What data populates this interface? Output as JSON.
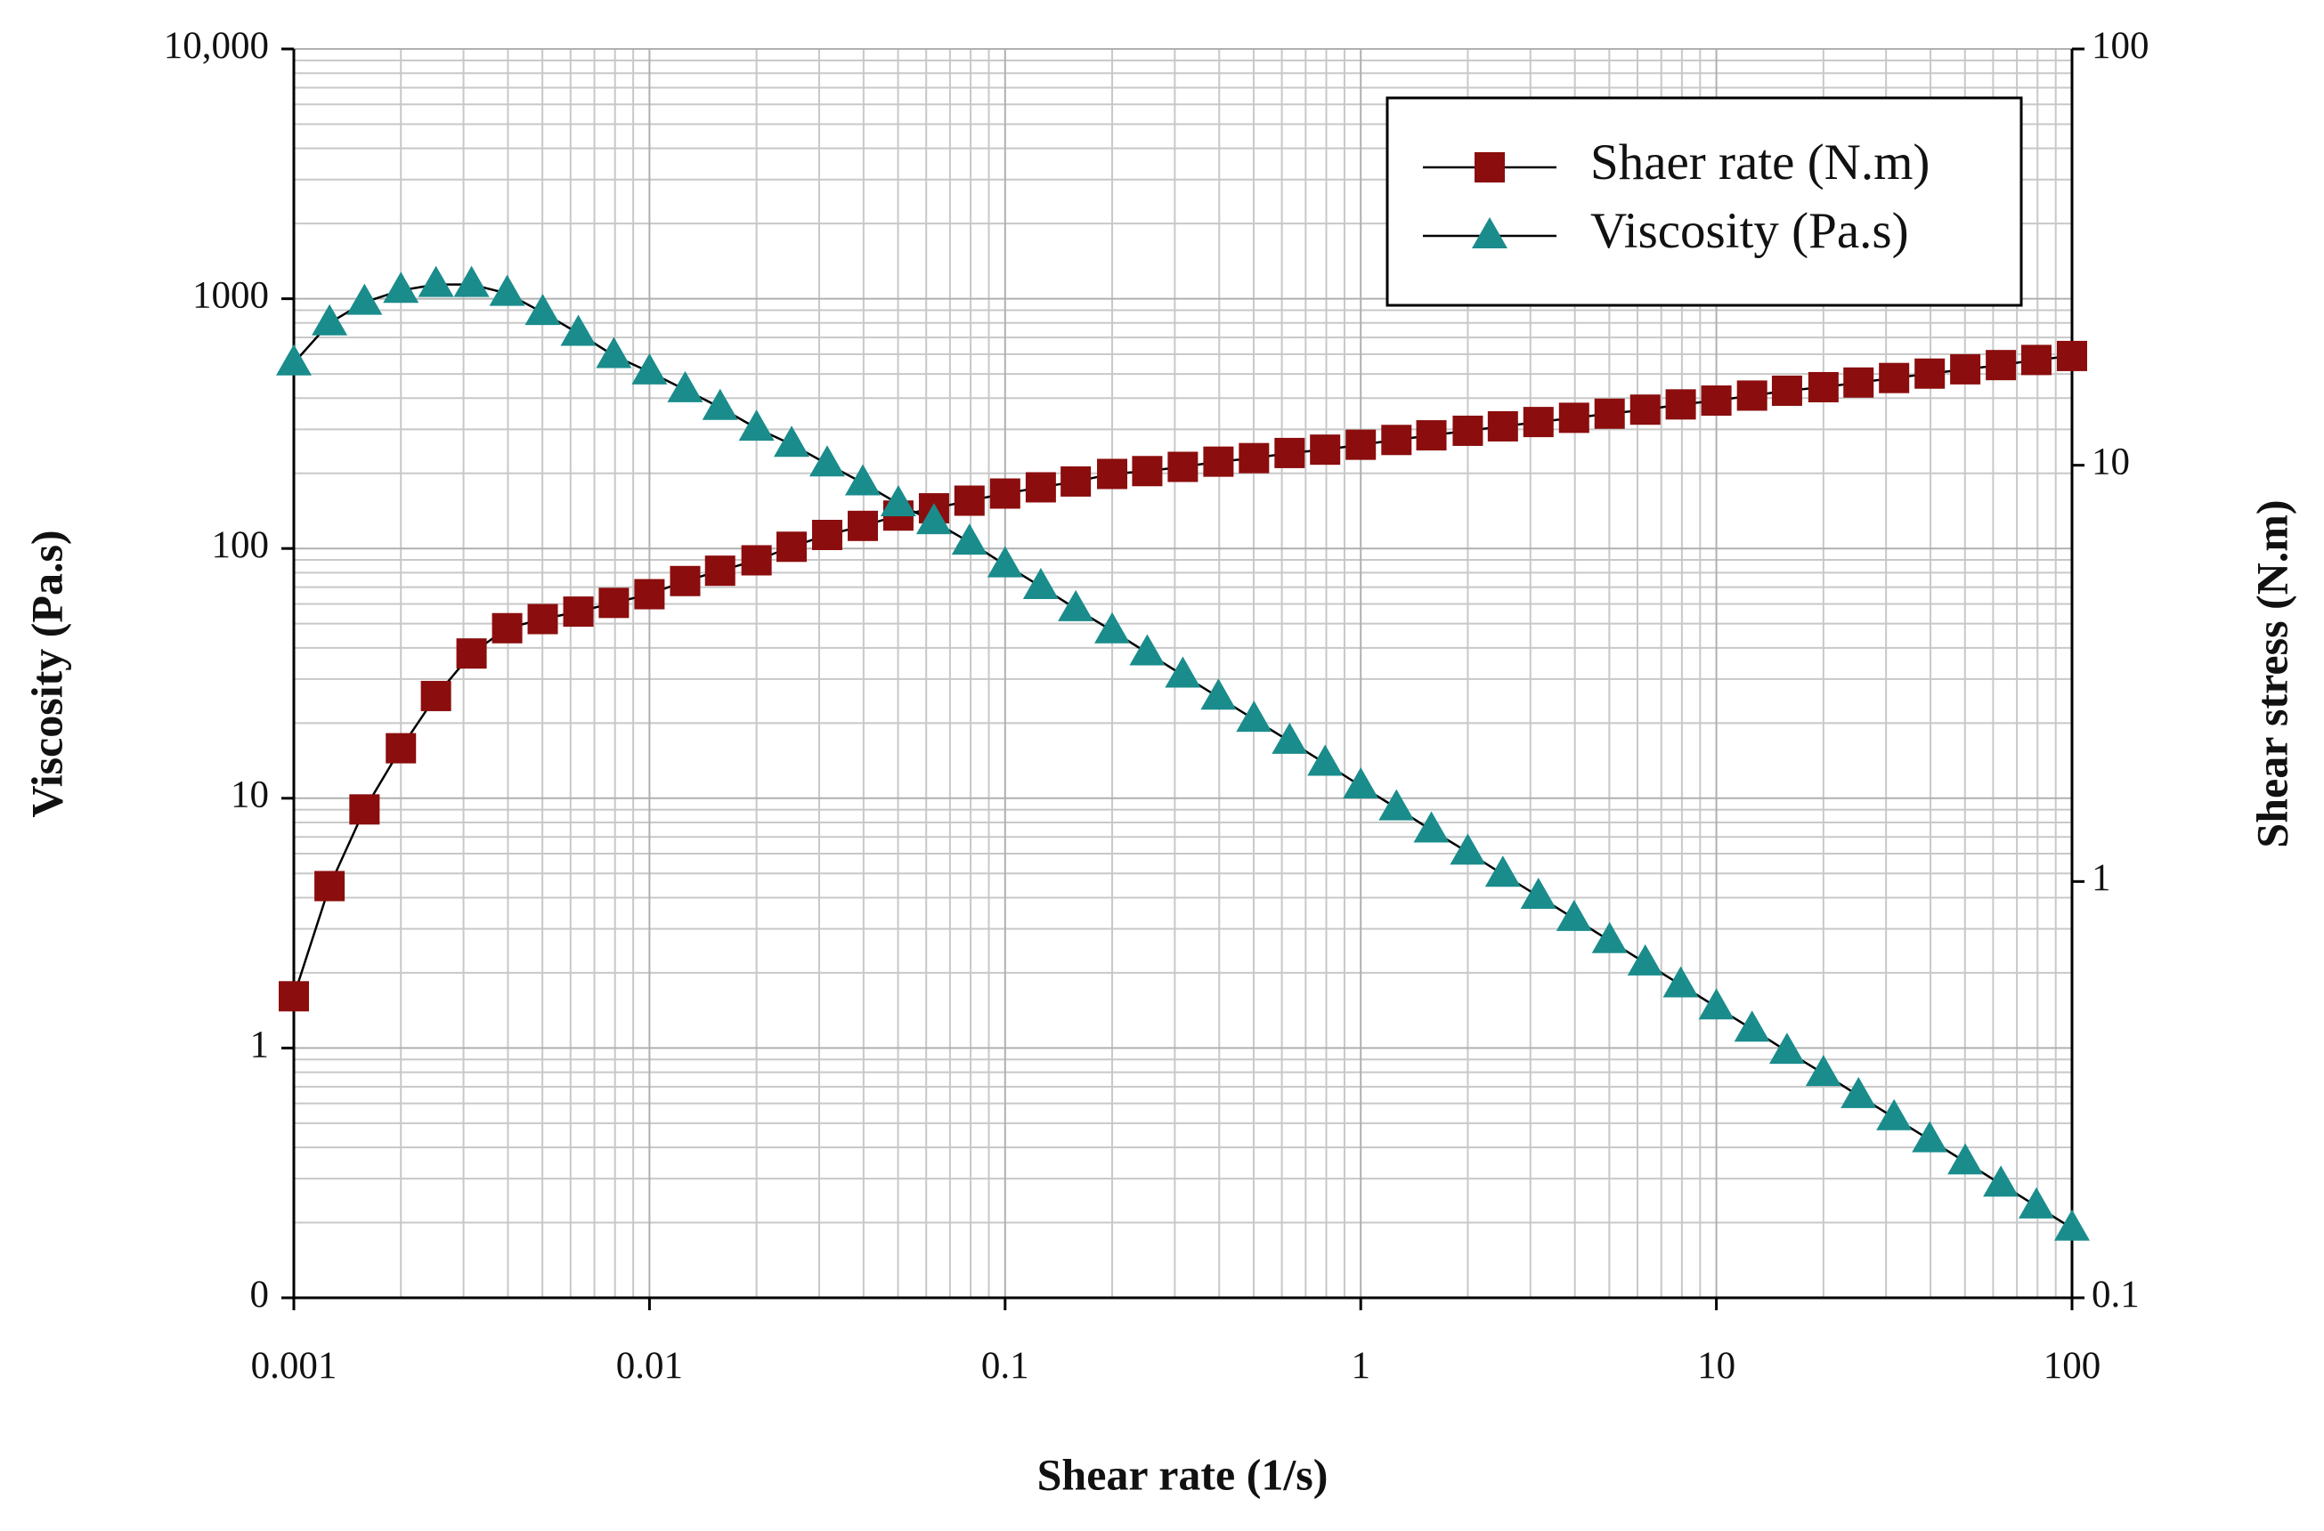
{
  "chart_data": {
    "type": "line",
    "xlabel": "Shear rate (1/s)",
    "ylabel": "Viscosity (Pa.s)",
    "y2label": "Shear stress (N.m)",
    "xscale": "log",
    "yscale": "log",
    "y2scale": "log",
    "grid": true,
    "minor_grid": true,
    "legend": "upper right",
    "xlim": [
      0.001,
      100
    ],
    "ylim": [
      0.1,
      10000
    ],
    "y2lim": [
      0.1,
      100
    ],
    "xticks": [
      0.001,
      0.01,
      0.1,
      1,
      10,
      100
    ],
    "yticks": [
      {
        "value": 0.1,
        "label": "0"
      },
      1,
      10,
      100,
      1000,
      {
        "value": 10000,
        "label": "10,000"
      }
    ],
    "y2ticks": [
      0.1,
      1,
      10,
      100
    ],
    "x": [
      0.001,
      0.00126,
      0.00158,
      0.002,
      0.00251,
      0.00316,
      0.00398,
      0.00501,
      0.00631,
      0.00794,
      0.01,
      0.0126,
      0.0158,
      0.02,
      0.0251,
      0.0316,
      0.0398,
      0.0501,
      0.0631,
      0.0794,
      0.1,
      0.126,
      0.158,
      0.2,
      0.251,
      0.316,
      0.398,
      0.501,
      0.631,
      0.794,
      1,
      1.26,
      1.58,
      2,
      2.51,
      3.16,
      3.98,
      5.01,
      6.31,
      7.94,
      10,
      12.6,
      15.8,
      20,
      25.1,
      31.6,
      39.8,
      50.1,
      63.1,
      79.4,
      100
    ],
    "series": [
      {
        "name": "Shaer rate (N.m)",
        "color": "#8b0d0d",
        "marker": "square",
        "axis": "y2",
        "values": [
          0.53,
          0.975,
          1.49,
          2.09,
          2.79,
          3.53,
          4.06,
          4.27,
          4.45,
          4.67,
          4.9,
          5.27,
          5.58,
          5.91,
          6.37,
          6.8,
          7.15,
          7.57,
          7.88,
          8.22,
          8.55,
          8.85,
          9.14,
          9.53,
          9.68,
          9.91,
          10.2,
          10.4,
          10.7,
          10.9,
          11.2,
          11.5,
          11.8,
          12.1,
          12.4,
          12.7,
          13.0,
          13.3,
          13.6,
          14.0,
          14.3,
          14.7,
          15.1,
          15.4,
          15.8,
          16.2,
          16.6,
          17.0,
          17.4,
          17.9,
          18.3
        ]
      },
      {
        "name": "Viscosity (Pa.s)",
        "color": "#1a8c8c",
        "marker": "triangle",
        "values": [
          553,
          800,
          968,
          1080,
          1140,
          1140,
          1050,
          880,
          727,
          592,
          509,
          432,
          367,
          303,
          261,
          218,
          183,
          151,
          128,
          106,
          86,
          70.4,
          57.4,
          46.8,
          38.2,
          31.1,
          25.4,
          20.7,
          16.9,
          13.8,
          11.2,
          9.15,
          7.46,
          6.08,
          4.96,
          4.05,
          3.3,
          2.69,
          2.19,
          1.79,
          1.46,
          1.19,
          0.97,
          0.79,
          0.645,
          0.526,
          0.429,
          0.35,
          0.285,
          0.233,
          0.19
        ]
      }
    ]
  }
}
